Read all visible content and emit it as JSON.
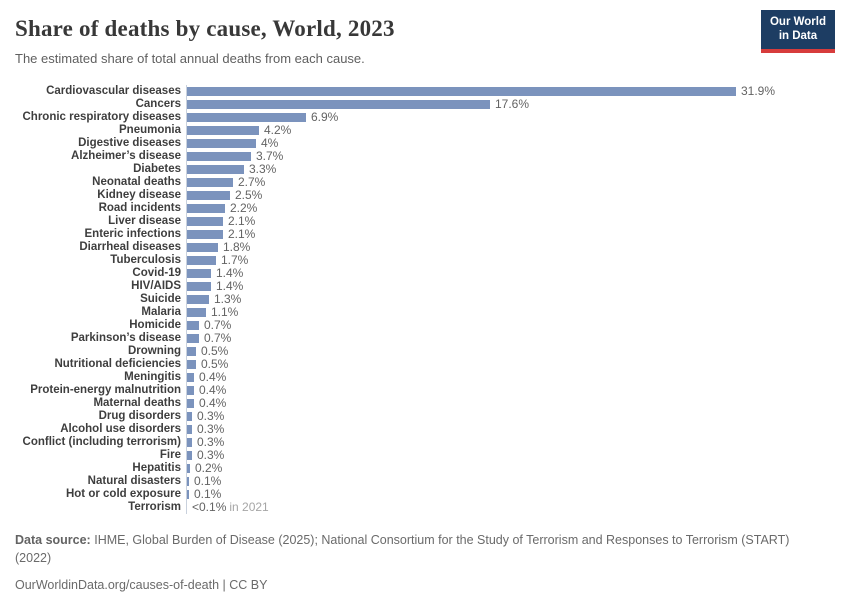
{
  "header": {
    "title": "Share of deaths by cause, World, 2023",
    "subtitle": "The estimated share of total annual deaths from each cause.",
    "logo": {
      "line1": "Our World",
      "line2": "in Data",
      "bg_color": "#1d3d63",
      "accent_color": "#d73c3c"
    }
  },
  "chart_data": {
    "type": "bar",
    "orientation": "horizontal",
    "title": "Share of deaths by cause, World, 2023",
    "subtitle": "The estimated share of total annual deaths from each cause.",
    "xlabel": "",
    "ylabel": "",
    "xlim": [
      0,
      32
    ],
    "grid": false,
    "legend": "none",
    "unit": "%",
    "bar_color": "#7b93bd",
    "axis_color": "#c9d1dd",
    "categories": [
      "Cardiovascular diseases",
      "Cancers",
      "Chronic respiratory diseases",
      "Pneumonia",
      "Digestive diseases",
      "Alzheimer’s disease",
      "Diabetes",
      "Neonatal deaths",
      "Kidney disease",
      "Road incidents",
      "Liver disease",
      "Enteric infections",
      "Diarrheal diseases",
      "Tuberculosis",
      "Covid-19",
      "HIV/AIDS",
      "Suicide",
      "Malaria",
      "Homicide",
      "Parkinson’s disease",
      "Drowning",
      "Nutritional deficiencies",
      "Meningitis",
      "Protein-energy malnutrition",
      "Maternal deaths",
      "Drug disorders",
      "Alcohol use disorders",
      "Conflict (including terrorism)",
      "Fire",
      "Hepatitis",
      "Natural disasters",
      "Hot or cold exposure",
      "Terrorism"
    ],
    "values": [
      31.9,
      17.6,
      6.9,
      4.2,
      4,
      3.7,
      3.3,
      2.7,
      2.5,
      2.2,
      2.1,
      2.1,
      1.8,
      1.7,
      1.4,
      1.4,
      1.3,
      1.1,
      0.7,
      0.7,
      0.5,
      0.5,
      0.4,
      0.4,
      0.4,
      0.3,
      0.3,
      0.3,
      0.3,
      0.2,
      0.1,
      0.1,
      0.05
    ],
    "value_labels": [
      "31.9%",
      "17.6%",
      "6.9%",
      "4.2%",
      "4%",
      "3.7%",
      "3.3%",
      "2.7%",
      "2.5%",
      "2.2%",
      "2.1%",
      "2.1%",
      "1.8%",
      "1.7%",
      "1.4%",
      "1.4%",
      "1.3%",
      "1.1%",
      "0.7%",
      "0.7%",
      "0.5%",
      "0.5%",
      "0.4%",
      "0.4%",
      "0.4%",
      "0.3%",
      "0.3%",
      "0.3%",
      "0.3%",
      "0.2%",
      "0.1%",
      "0.1%",
      "<0.1%"
    ],
    "annotations": [
      {
        "category": "Terrorism",
        "suffix": "in 2021"
      }
    ]
  },
  "footer": {
    "data_source_label": "Data source:",
    "data_source_text": "IHME, Global Burden of Disease (2025); National Consortium for the Study of Terrorism and Responses to Terrorism (START) (2022)",
    "link_line": "OurWorldinData.org/causes-of-death | CC BY"
  }
}
